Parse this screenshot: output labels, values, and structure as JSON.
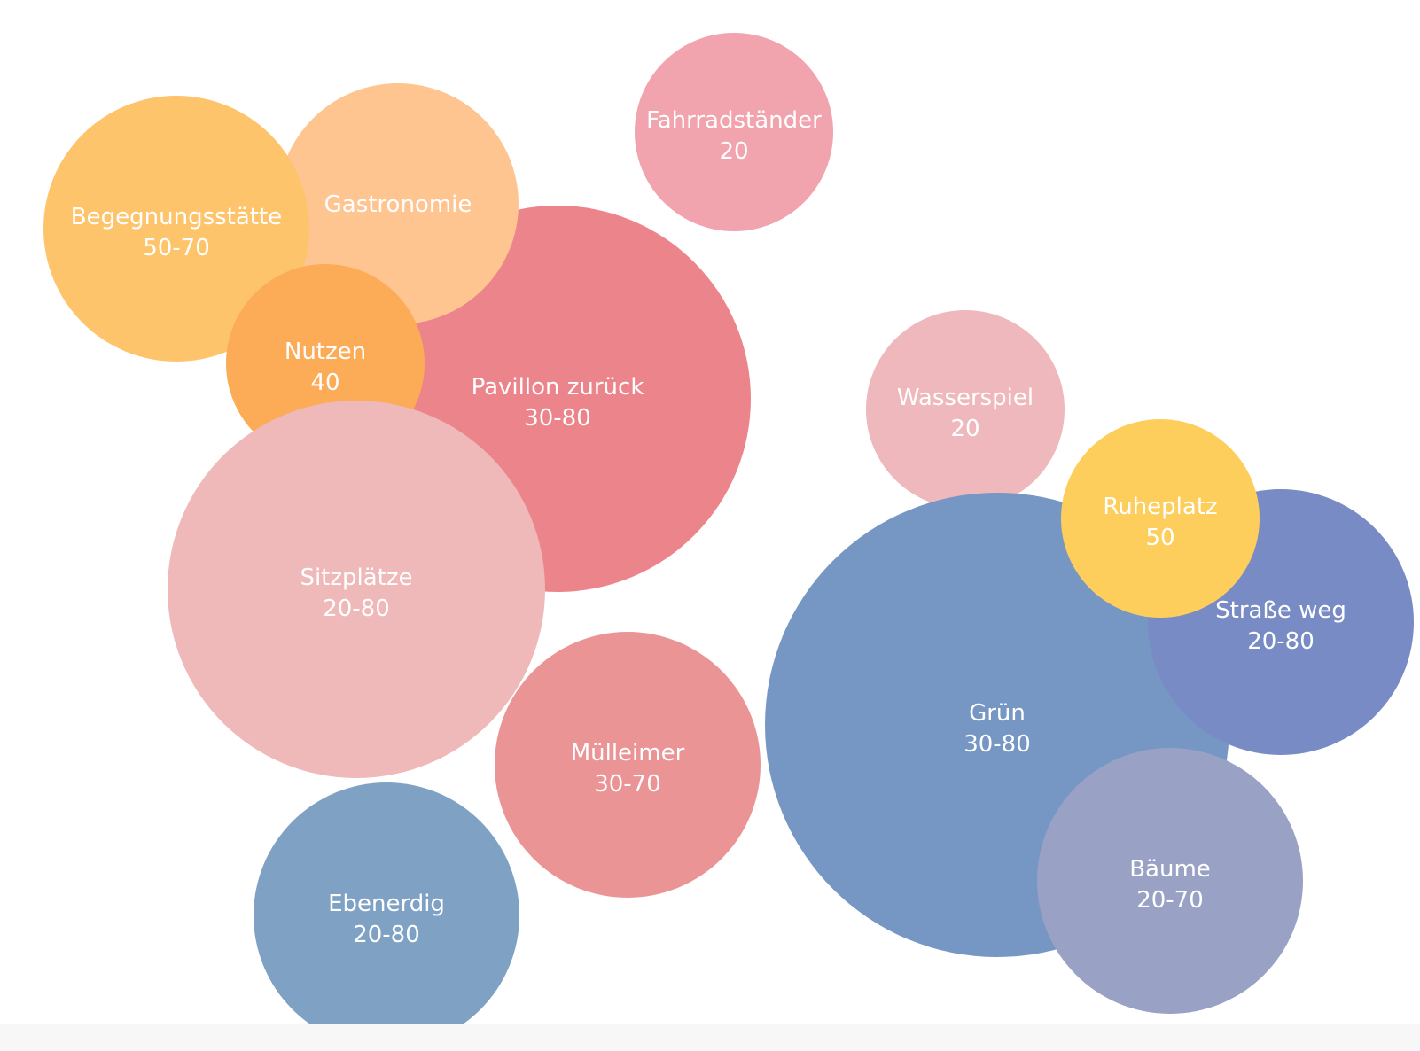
{
  "chart_data": {
    "type": "bubble",
    "bubbles": [
      {
        "label": "Pavillon zurück",
        "value": "30-80",
        "color": "#ec858b"
      },
      {
        "label": "Gastronomie",
        "value": "",
        "color": "#fec591"
      },
      {
        "label": "Begegnungsstätte",
        "value": "50-70",
        "color": "#fec46c"
      },
      {
        "label": "Nutzen",
        "value": "40",
        "color": "#fcab57"
      },
      {
        "label": "Sitzplätze",
        "value": "20-80",
        "color": "#efb8b9"
      },
      {
        "label": "Fahrradständer",
        "value": "20",
        "color": "#f1a4ad"
      },
      {
        "label": "Mülleimer",
        "value": "30-70",
        "color": "#ea9496"
      },
      {
        "label": "Ebenerdig",
        "value": "20-80",
        "color": "#7fa1c4"
      },
      {
        "label": "Wasserspiel",
        "value": "20",
        "color": "#efb8bc"
      },
      {
        "label": "Grün",
        "value": "30-80",
        "color": "#7696c4"
      },
      {
        "label": "Straße weg",
        "value": "20-80",
        "color": "#788bc4"
      },
      {
        "label": "Ruheplatz",
        "value": "50",
        "color": "#fdce5c"
      },
      {
        "label": "Bäume",
        "value": "20-70",
        "color": "#99a1c4"
      }
    ]
  }
}
